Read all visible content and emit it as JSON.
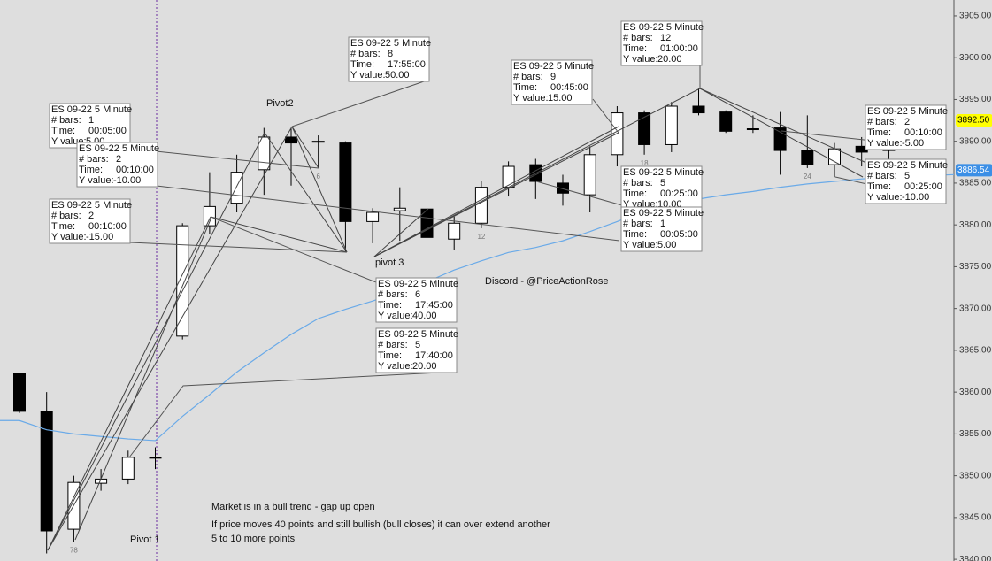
{
  "chart_data": {
    "type": "candlestick",
    "categories": [
      null,
      null,
      "78",
      null,
      null,
      null,
      null,
      null,
      null,
      null,
      null,
      "6",
      null,
      null,
      null,
      null,
      null,
      "12",
      null,
      null,
      null,
      null,
      null,
      "18",
      null,
      null,
      null,
      null,
      null,
      "24",
      null,
      null,
      null
    ],
    "open": [
      3862.2,
      3857.7,
      3843.6,
      3849.1,
      3849.6,
      3852.2,
      3866.7,
      3879.9,
      3882.6,
      3886.6,
      3890.5,
      3890.0,
      3889.8,
      3880.4,
      3881.7,
      3881.9,
      3878.3,
      3880.2,
      3884.5,
      3887.2,
      3885.0,
      3883.6,
      3888.4,
      3893.4,
      3889.6,
      3894.2,
      3893.5,
      3891.4,
      3891.6,
      3888.9,
      3887.2,
      3889.4,
      3888.9
    ],
    "high": [
      3862.3,
      3860.0,
      3850.0,
      3850.8,
      3853.0,
      3853.4,
      3880.2,
      3886.3,
      3888.4,
      3891.6,
      3891.6,
      3890.7,
      3890.0,
      3882.0,
      3884.5,
      3884.7,
      3881.0,
      3885.2,
      3887.6,
      3887.9,
      3886.0,
      3889.4,
      3894.2,
      3893.7,
      3894.7,
      3896.3,
      3893.7,
      3893.1,
      3893.5,
      3893.1,
      3889.8,
      3890.5,
      3890.8
    ],
    "low": [
      3857.5,
      3840.7,
      3842.1,
      3848.2,
      3849.0,
      3850.8,
      3866.3,
      3878.9,
      3881.5,
      3883.6,
      3884.7,
      3886.8,
      3876.7,
      3877.8,
      3878.1,
      3877.8,
      3877.0,
      3879.6,
      3883.4,
      3883.1,
      3882.3,
      3881.5,
      3887.0,
      3888.4,
      3888.7,
      3893.1,
      3891.0,
      3891.0,
      3886.0,
      3886.8,
      3885.7,
      3887.0,
      3887.8
    ],
    "close": [
      3857.7,
      3843.4,
      3849.2,
      3849.6,
      3852.2,
      3852.2,
      3879.9,
      3882.2,
      3886.3,
      3890.5,
      3889.8,
      3889.9,
      3880.4,
      3881.5,
      3882.0,
      3878.5,
      3880.2,
      3884.5,
      3887.0,
      3885.2,
      3883.8,
      3888.4,
      3893.4,
      3889.6,
      3894.2,
      3893.4,
      3891.2,
      3891.5,
      3888.9,
      3887.2,
      3889.1,
      3888.7,
      3890.2
    ],
    "up_color": "#ffffff",
    "down_color": "#000000",
    "moving_average": {
      "color": "#6aaae8",
      "values": [
        3856.6,
        3855.5,
        3855.0,
        3854.7,
        3854.4,
        3854.2,
        3857.1,
        3859.7,
        3862.4,
        3864.7,
        3866.9,
        3868.8,
        3869.9,
        3870.9,
        3872.0,
        3873.2,
        3874.6,
        3875.7,
        3876.7,
        3877.3,
        3878.1,
        3879.2,
        3880.4,
        3881.7,
        3882.6,
        3883.1,
        3883.6,
        3884.0,
        3884.5,
        3884.9,
        3885.2,
        3885.5,
        3885.7
      ]
    },
    "ylim": [
      3839.8,
      3906.9
    ],
    "yticks": [
      {
        "value": 3840,
        "label": "3840.00"
      },
      {
        "value": 3845,
        "label": "3845.00"
      },
      {
        "value": 3850,
        "label": "3850.00"
      },
      {
        "value": 3855,
        "label": "3855.00"
      },
      {
        "value": 3860,
        "label": "3860.00"
      },
      {
        "value": 3865,
        "label": "3865.00"
      },
      {
        "value": 3870,
        "label": "3870.00"
      },
      {
        "value": 3875,
        "label": "3875.00"
      },
      {
        "value": 3880,
        "label": "3880.00"
      },
      {
        "value": 3885,
        "label": "3885.00"
      },
      {
        "value": 3890,
        "label": "3890.00"
      },
      {
        "value": 3895,
        "label": "3895.00"
      },
      {
        "value": 3900,
        "label": "3900.00"
      },
      {
        "value": 3905,
        "label": "3905.00"
      }
    ],
    "price_markers": [
      {
        "value": 3892.5,
        "label": "3892.50",
        "color": "#ffff00",
        "text_color": "#000000"
      },
      {
        "value": 3886.54,
        "label": "3886.54",
        "color": "#3b8fe6",
        "text_color": "#ffffff"
      }
    ],
    "pivot_labels": [
      "Pivot2",
      "pivot 3",
      "Pivot 1"
    ],
    "watermark": "Discord - @PriceActionRose",
    "notes": [
      "Market is in a bull trend - gap up open",
      "If price moves 40 points and still bullish (bull closes) it can over extend another",
      "5 to 10 more points"
    ],
    "annotation_fields": [
      "# bars:",
      "Time:",
      "Y value:"
    ],
    "annotations": [
      {
        "title": "ES 09-22 5 Minute",
        "bars": 8,
        "time": "17:55:00",
        "y_value": "50.00"
      },
      {
        "title": "ES 09-22 5 Minute",
        "bars": 12,
        "time": "01:00:00",
        "y_value": "20.00"
      },
      {
        "title": "ES 09-22 5 Minute",
        "bars": 9,
        "time": "00:45:00",
        "y_value": "15.00"
      },
      {
        "title": "ES 09-22 5 Minute",
        "bars": 1,
        "time": "00:05:00",
        "y_value": "5.00"
      },
      {
        "title": "ES 09-22 5 Minute",
        "bars": 2,
        "time": "00:10:00",
        "y_value": "-10.00"
      },
      {
        "title": "ES 09-22 5 Minute",
        "bars": 2,
        "time": "00:10:00",
        "y_value": "-15.00"
      },
      {
        "title": "ES 09-22 5 Minute",
        "bars": 5,
        "time": "00:25:00",
        "y_value": "10.00"
      },
      {
        "title": "ES 09-22 5 Minute",
        "bars": 1,
        "time": "00:05:00",
        "y_value": "5.00"
      },
      {
        "title": "ES 09-22 5 Minute",
        "bars": 2,
        "time": "00:10:00",
        "y_value": "-5.00"
      },
      {
        "title": "ES 09-22 5 Minute",
        "bars": 5,
        "time": "00:25:00",
        "y_value": "-10.00"
      },
      {
        "title": "ES 09-22 5 Minute",
        "bars": 6,
        "time": "17:45:00",
        "y_value": "40.00"
      },
      {
        "title": "ES 09-22 5 Minute",
        "bars": 5,
        "time": "17:40:00",
        "y_value": "20.00"
      }
    ]
  }
}
